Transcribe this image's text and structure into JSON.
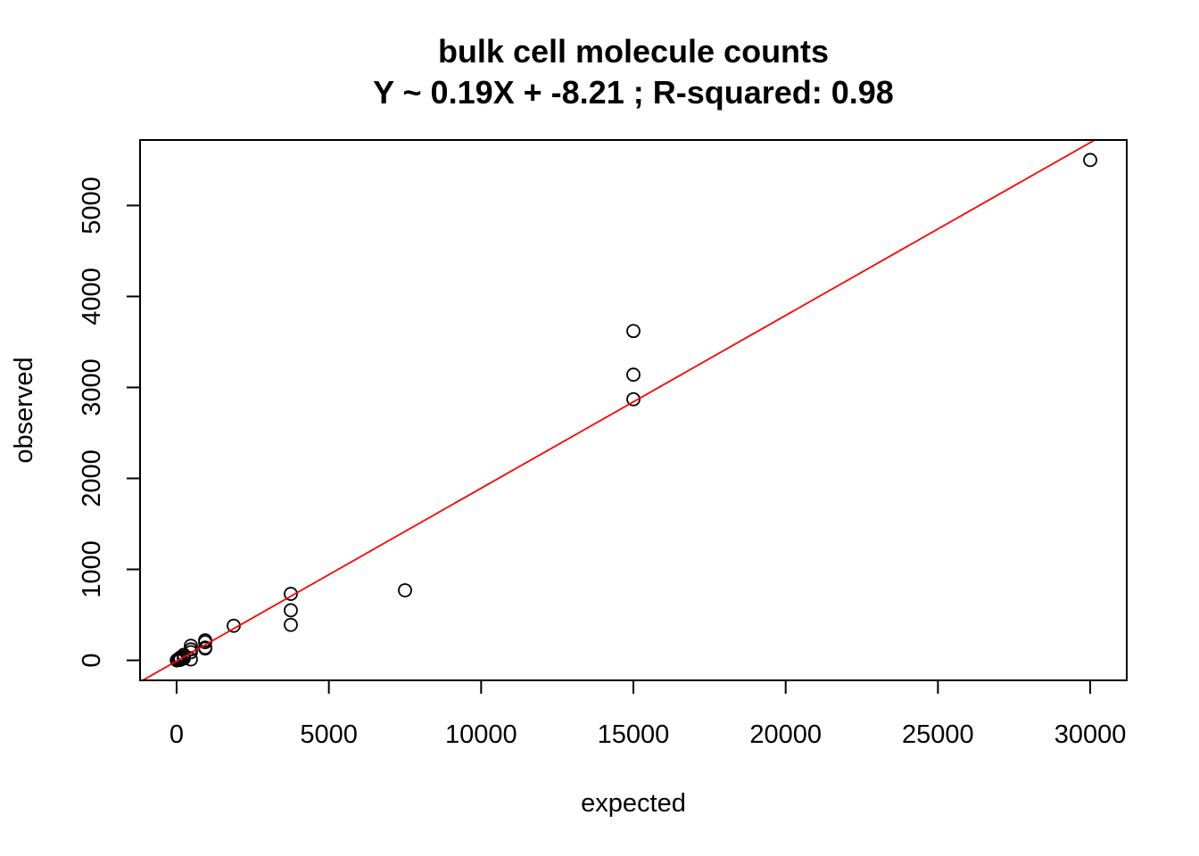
{
  "chart_data": {
    "type": "scatter",
    "title": "bulk cell molecule counts",
    "subtitle": "Y ~ 0.19X + -8.21 ; R-squared: 0.98",
    "xlabel": "expected",
    "ylabel": "observed",
    "xlim": [
      -1200,
      31200
    ],
    "ylim": [
      -220,
      5720
    ],
    "xticks": [
      0,
      5000,
      10000,
      15000,
      20000,
      25000,
      30000
    ],
    "yticks": [
      0,
      1000,
      2000,
      3000,
      4000,
      5000
    ],
    "xtick_labels": [
      "0",
      "5000",
      "10000",
      "15000",
      "20000",
      "25000",
      "30000"
    ],
    "ytick_labels": [
      "0",
      "1000",
      "2000",
      "3000",
      "4000",
      "5000"
    ],
    "grid": false,
    "point_color": "#000000",
    "fit_line": {
      "slope": 0.19,
      "intercept": -8.21,
      "color": "#ff0000"
    },
    "points": [
      {
        "x": 30000,
        "y": 5500
      },
      {
        "x": 15000,
        "y": 3620
      },
      {
        "x": 15000,
        "y": 3140
      },
      {
        "x": 15000,
        "y": 2870
      },
      {
        "x": 7500,
        "y": 770
      },
      {
        "x": 3750,
        "y": 730
      },
      {
        "x": 3750,
        "y": 550
      },
      {
        "x": 3750,
        "y": 390
      },
      {
        "x": 1875,
        "y": 380
      },
      {
        "x": 938,
        "y": 220
      },
      {
        "x": 938,
        "y": 200
      },
      {
        "x": 938,
        "y": 140
      },
      {
        "x": 938,
        "y": 130
      },
      {
        "x": 469,
        "y": 160
      },
      {
        "x": 469,
        "y": 120
      },
      {
        "x": 469,
        "y": 90
      },
      {
        "x": 469,
        "y": 10
      },
      {
        "x": 234,
        "y": 60
      },
      {
        "x": 234,
        "y": 40
      },
      {
        "x": 234,
        "y": 20
      },
      {
        "x": 117,
        "y": 30
      },
      {
        "x": 117,
        "y": 15
      },
      {
        "x": 117,
        "y": 5
      },
      {
        "x": 59,
        "y": 10
      },
      {
        "x": 59,
        "y": 4
      },
      {
        "x": 29,
        "y": 5
      },
      {
        "x": 29,
        "y": 2
      },
      {
        "x": 15,
        "y": 1
      },
      {
        "x": 7,
        "y": 0
      }
    ]
  }
}
